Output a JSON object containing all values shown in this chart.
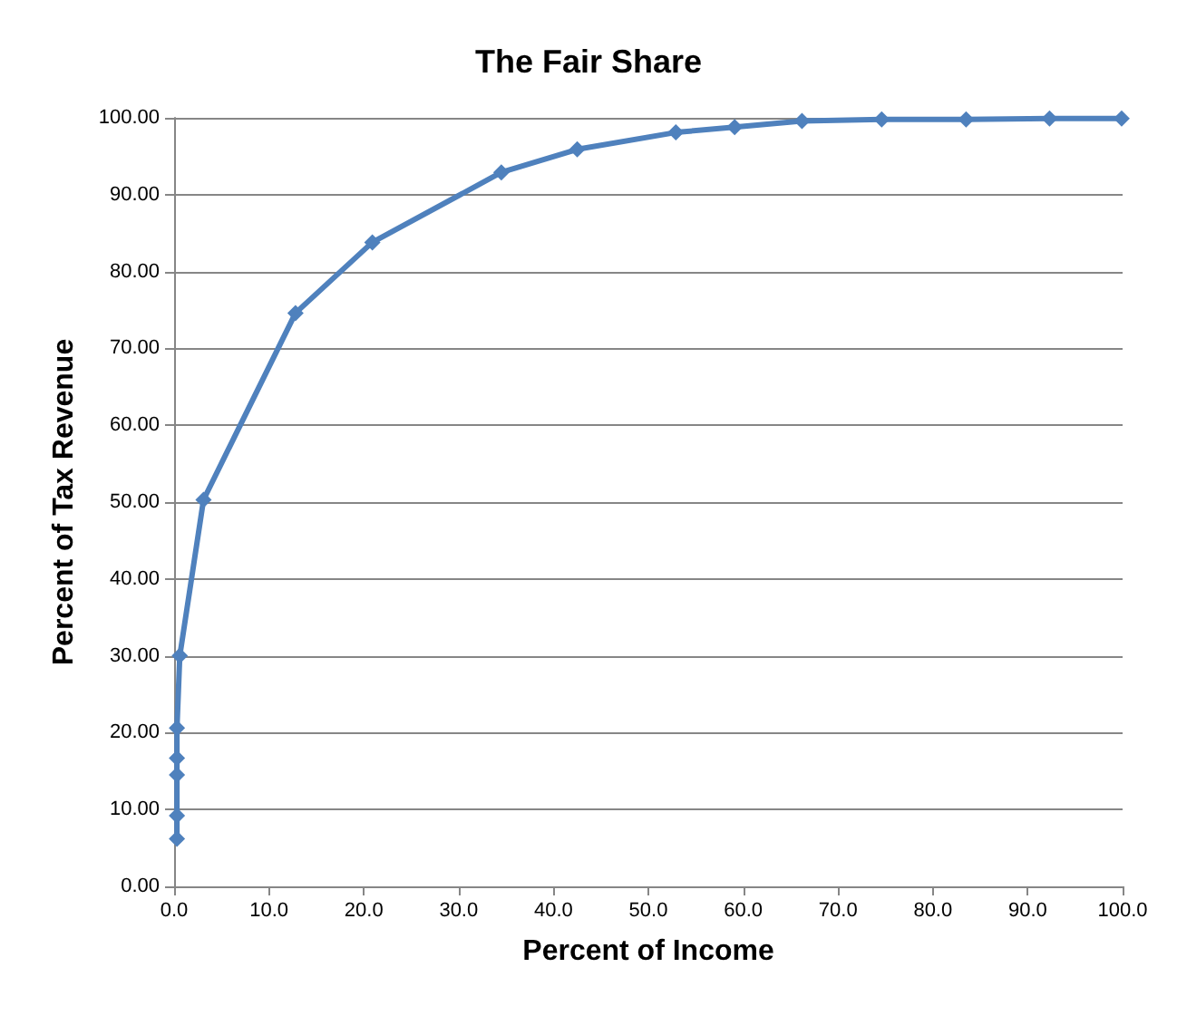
{
  "chart_data": {
    "type": "line",
    "title": "The Fair Share",
    "xlabel": "Percent of Income",
    "ylabel": "Percent of Tax Revenue",
    "x": [
      0.3,
      0.3,
      0.3,
      0.3,
      0.3,
      0.6,
      3.1,
      12.8,
      20.9,
      34.5,
      42.5,
      52.9,
      59.1,
      66.2,
      74.6,
      83.5,
      92.3,
      99.9
    ],
    "series": [
      {
        "color": "#4f81bd",
        "values": [
          6.2,
          9.2,
          14.5,
          16.7,
          20.6,
          30.0,
          50.3,
          74.6,
          83.8,
          92.9,
          95.9,
          98.1,
          98.8,
          99.6,
          99.8,
          99.8,
          99.9,
          99.9
        ]
      }
    ],
    "xlim": [
      0,
      100
    ],
    "xticks": [
      {
        "value": 0,
        "label": "0.0"
      },
      {
        "value": 10,
        "label": "10.0"
      },
      {
        "value": 20,
        "label": "20.0"
      },
      {
        "value": 30,
        "label": "30.0"
      },
      {
        "value": 40,
        "label": "40.0"
      },
      {
        "value": 50,
        "label": "50.0"
      },
      {
        "value": 60,
        "label": "60.0"
      },
      {
        "value": 70,
        "label": "70.0"
      },
      {
        "value": 80,
        "label": "80.0"
      },
      {
        "value": 90,
        "label": "90.0"
      },
      {
        "value": 100,
        "label": "100.0"
      }
    ],
    "ylim": [
      0,
      100
    ],
    "yticks": [
      {
        "value": 0,
        "label": "0.00"
      },
      {
        "value": 10,
        "label": "10.00"
      },
      {
        "value": 20,
        "label": "20.00"
      },
      {
        "value": 30,
        "label": "30.00"
      },
      {
        "value": 40,
        "label": "40.00"
      },
      {
        "value": 50,
        "label": "50.00"
      },
      {
        "value": 60,
        "label": "60.00"
      },
      {
        "value": 70,
        "label": "70.00"
      },
      {
        "value": 80,
        "label": "80.00"
      },
      {
        "value": 90,
        "label": "90.00"
      },
      {
        "value": 100,
        "label": "100.00"
      }
    ],
    "grid": "y",
    "marker": "diamond",
    "line_style": "solid"
  }
}
